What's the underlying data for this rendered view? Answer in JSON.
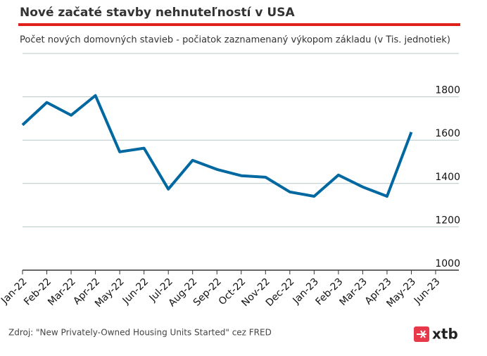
{
  "chart_data": {
    "type": "line",
    "title": "Nové začaté stavby nehnuteľností v USA",
    "subtitle": "Počet nových domovných stavieb - počiatok zaznamenaný výkopom základu (v Tis. jednotiek)",
    "source": "Zdroj: \"New Privately-Owned Housing Units Started\" cez FRED",
    "logo": "xtb",
    "categories": [
      "Jan-22",
      "Feb-22",
      "Mar-22",
      "Apr-22",
      "May-22",
      "Jun-22",
      "Jul-22",
      "Aug-22",
      "Sep-22",
      "Oct-22",
      "Nov-22",
      "Dec-22",
      "Jan-23",
      "Feb-23",
      "Mar-23",
      "Apr-23",
      "May-23",
      "Jun-23"
    ],
    "series": [
      {
        "color": "#0068a0",
        "values": [
          1670,
          1774,
          1715,
          1806,
          1546,
          1563,
          1374,
          1507,
          1465,
          1436,
          1429,
          1361,
          1341,
          1439,
          1384,
          1341,
          1637,
          null
        ]
      }
    ],
    "ylim": [
      1000,
      2000
    ],
    "yticks": [
      1000,
      1200,
      1400,
      1600,
      1800
    ],
    "grid": true
  }
}
